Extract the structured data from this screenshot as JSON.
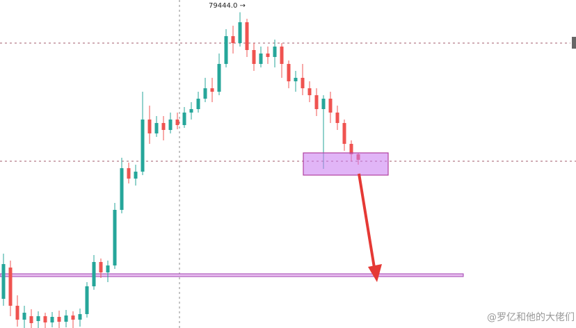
{
  "chart_data": {
    "type": "candlestick",
    "peak_label": "79444.0 →",
    "watermark": "@罗亿和他的大佬们",
    "up_color": "#26a69a",
    "down_color": "#ef5350",
    "ylim": [
      74900,
      79620
    ],
    "open": [
      75320,
      75770,
      75220,
      75020,
      75070,
      75000,
      75070,
      74980,
      75060,
      74990,
      75080,
      75020,
      75100,
      75500,
      75850,
      75700,
      75800,
      76600,
      77200,
      77050,
      77150,
      77900,
      77700,
      77850,
      77750,
      77900,
      77820,
      78000,
      78050,
      78200,
      78350,
      78300,
      78700,
      79100,
      79000,
      79300,
      78900,
      78700,
      78850,
      78800,
      78950,
      78700,
      78450,
      78500,
      78350,
      78250,
      78050,
      78200,
      78000,
      77850,
      77550,
      77400
    ],
    "high": [
      75970,
      75870,
      75370,
      75220,
      75170,
      75140,
      75120,
      75130,
      75150,
      75160,
      75140,
      75180,
      75560,
      75950,
      75900,
      75870,
      76700,
      77350,
      77280,
      77250,
      78300,
      78100,
      77950,
      77950,
      78000,
      78000,
      78080,
      78150,
      78300,
      78500,
      78500,
      78850,
      79200,
      79250,
      79444,
      79350,
      79000,
      78950,
      78950,
      79050,
      79000,
      78750,
      78600,
      78700,
      78450,
      78350,
      78250,
      78300,
      78100,
      77900,
      77600,
      77420
    ],
    "low": [
      75220,
      75070,
      74920,
      74900,
      74900,
      74900,
      74900,
      74910,
      74900,
      74910,
      74900,
      74920,
      75050,
      75450,
      75620,
      75560,
      75750,
      76550,
      76980,
      76950,
      77100,
      77550,
      77650,
      77600,
      77700,
      77760,
      77780,
      77900,
      78000,
      78150,
      78150,
      78250,
      78650,
      78850,
      78950,
      78800,
      78600,
      78650,
      78700,
      78650,
      78500,
      78350,
      78300,
      78250,
      78150,
      77950,
      77190,
      77850,
      77750,
      77450,
      77300,
      77250
    ],
    "close": [
      75820,
      75220,
      75020,
      75120,
      74970,
      75070,
      74980,
      75060,
      74990,
      75080,
      75020,
      75100,
      75500,
      75850,
      75700,
      75800,
      76600,
      77200,
      77050,
      77150,
      77900,
      77700,
      77850,
      77750,
      77900,
      77820,
      78000,
      78050,
      78200,
      78350,
      78300,
      78700,
      79100,
      79000,
      79300,
      78900,
      78700,
      78850,
      78800,
      78950,
      78700,
      78450,
      78500,
      78350,
      78250,
      78050,
      78200,
      78000,
      77850,
      77550,
      77400,
      77320
    ]
  }
}
